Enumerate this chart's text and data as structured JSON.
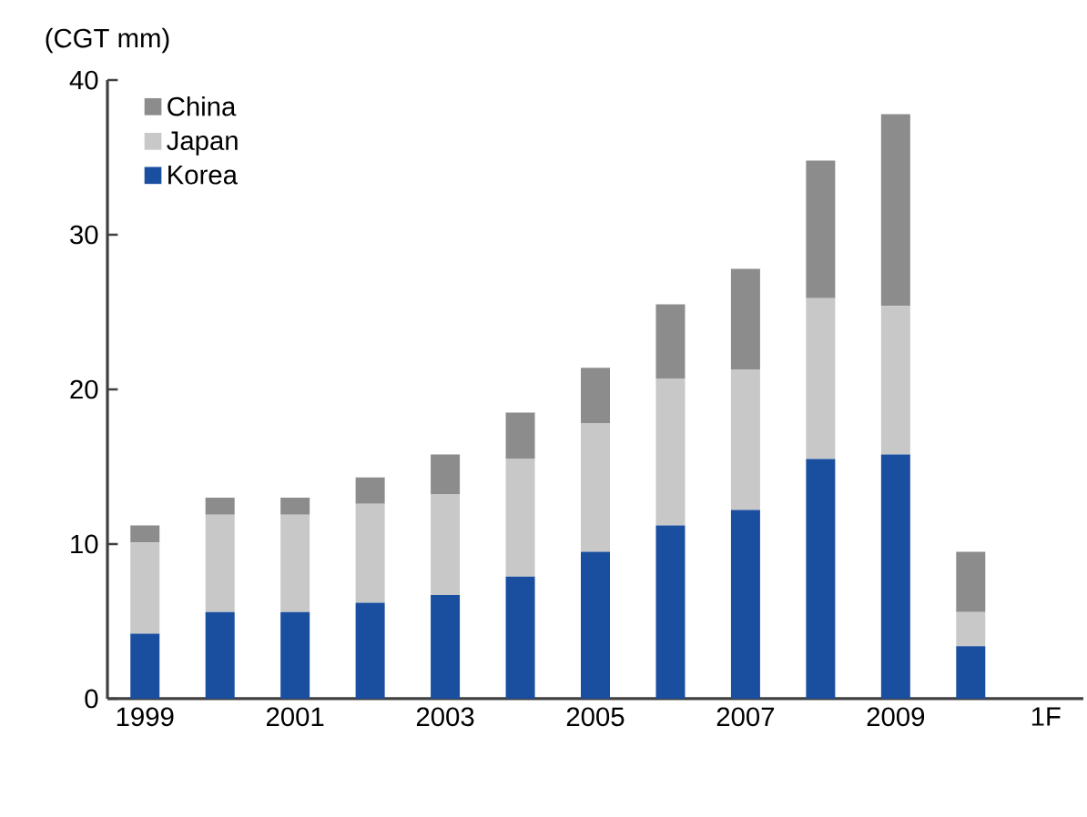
{
  "chart_data": {
    "type": "bar",
    "stacked": true,
    "ylabel": "(CGT mm)",
    "categories": [
      "1999",
      null,
      "2001",
      null,
      "2003",
      null,
      "2005",
      null,
      "2007",
      null,
      "2009",
      null,
      "1F"
    ],
    "series": [
      {
        "name": "Korea",
        "color": "#1a4fa0",
        "values": [
          4.2,
          5.6,
          5.6,
          6.2,
          6.7,
          7.9,
          9.5,
          11.2,
          12.2,
          15.5,
          15.8,
          3.4,
          null
        ]
      },
      {
        "name": "Japan",
        "color": "#c8c8c8",
        "values": [
          5.9,
          6.3,
          6.3,
          6.4,
          6.5,
          7.6,
          8.3,
          9.5,
          9.1,
          10.4,
          9.6,
          2.2,
          null
        ]
      },
      {
        "name": "China",
        "color": "#8c8c8c",
        "values": [
          1.1,
          1.1,
          1.1,
          1.7,
          2.6,
          3.0,
          3.6,
          4.8,
          6.5,
          8.9,
          12.4,
          3.9,
          null
        ]
      }
    ],
    "ylim": [
      0,
      40
    ],
    "yticks": [
      0,
      10,
      20,
      30,
      40
    ],
    "legend": "top left"
  }
}
